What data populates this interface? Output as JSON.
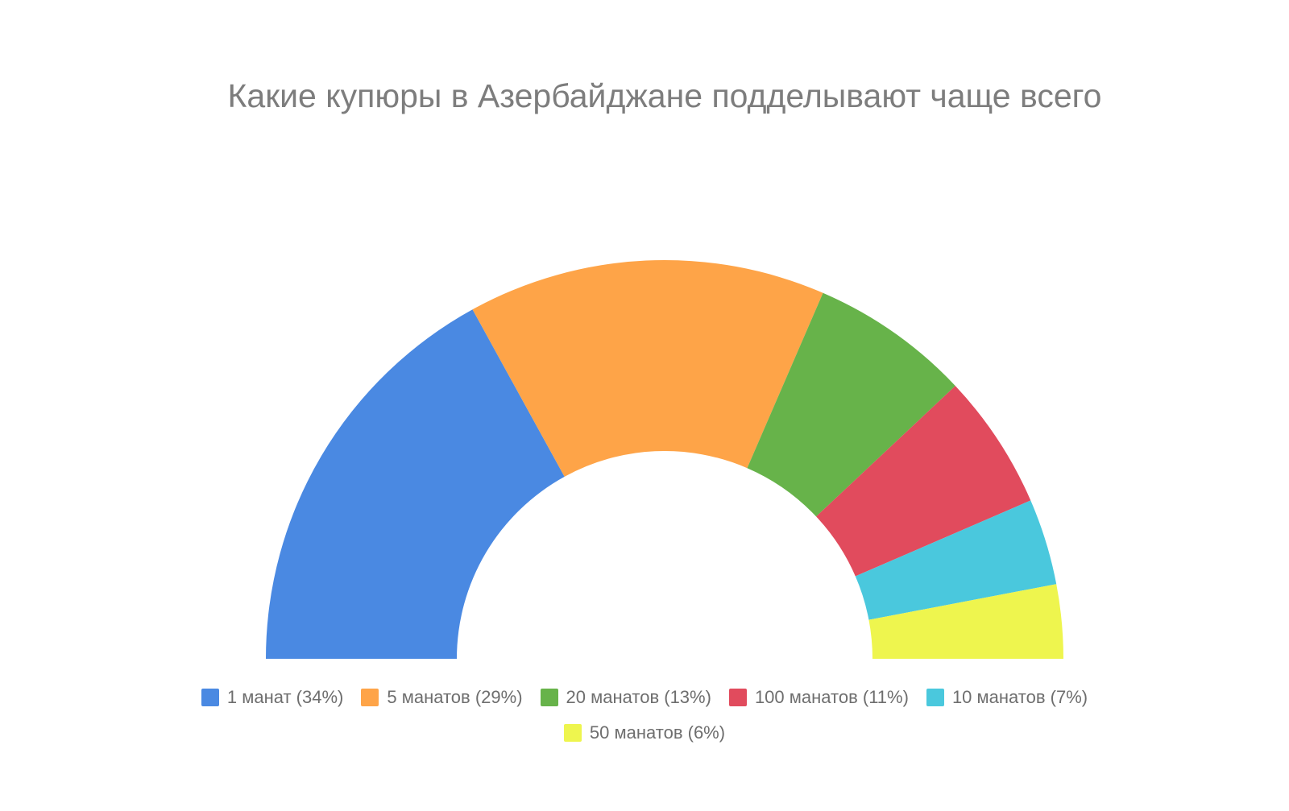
{
  "chart_data": {
    "type": "pie",
    "variant": "half-donut",
    "title": "Какие купюры в Азербайджане подделывают чаще всего",
    "series": [
      {
        "name": "1 манат",
        "value": 34,
        "legend_label": "1 манат (34%)",
        "color": "#4a89e2"
      },
      {
        "name": "5 манатов",
        "value": 29,
        "legend_label": "5 манатов (29%)",
        "color": "#fea448"
      },
      {
        "name": "20 манатов",
        "value": 13,
        "legend_label": "20 манатов (13%)",
        "color": "#67b34a"
      },
      {
        "name": "100 манатов",
        "value": 11,
        "legend_label": "100 манатов (11%)",
        "color": "#e14b5d"
      },
      {
        "name": "10 манатов",
        "value": 7,
        "legend_label": "10 манатов (7%)",
        "color": "#4ac8dd"
      },
      {
        "name": "50 манатов",
        "value": 6,
        "legend_label": "50 манатов (6%)",
        "color": "#eef54e"
      }
    ],
    "legend_position": "bottom",
    "unit": "%"
  }
}
